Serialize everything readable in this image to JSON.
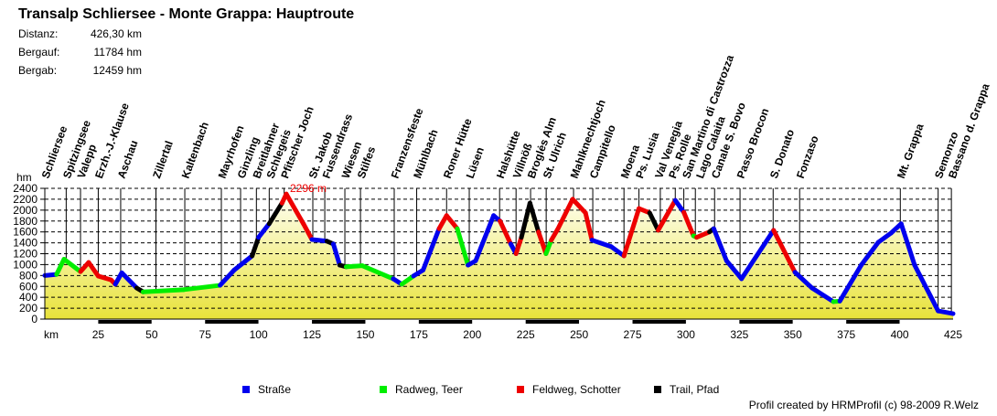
{
  "header": {
    "title": "Transalp Schliersee - Monte Grappa: Hauptroute",
    "stats": [
      {
        "label": "Distanz:",
        "value": "426,30 km"
      },
      {
        "label": "Bergauf:",
        "value": "11784 hm"
      },
      {
        "label": "Bergab:",
        "value": "12459 hm"
      }
    ]
  },
  "footer": {
    "credit": "Profil created by HRMProfil (c) 98-2009 R.Welz"
  },
  "chart_data": {
    "type": "area",
    "title": "Transalp Schliersee - Monte Grappa: Hauptroute",
    "xlabel": "km",
    "ylabel": "hm",
    "xlim": [
      0,
      425
    ],
    "ylim": [
      0,
      2400
    ],
    "xticks": [
      25,
      50,
      75,
      100,
      125,
      150,
      175,
      200,
      225,
      250,
      275,
      300,
      325,
      350,
      375,
      400,
      425
    ],
    "yticks": [
      0,
      200,
      400,
      600,
      800,
      1000,
      1200,
      1400,
      1600,
      1800,
      2000,
      2200,
      2400
    ],
    "grid": true,
    "max_label": "2296 m",
    "max_point": {
      "km": 113,
      "elevation": 2296
    },
    "legend_position": "bottom",
    "surface_types": [
      {
        "key": "road",
        "name": "Straße",
        "color": "#0000ee"
      },
      {
        "key": "cycle",
        "name": "Radweg, Teer",
        "color": "#00ee00"
      },
      {
        "key": "gravel",
        "name": "Feldweg, Schotter",
        "color": "#ee0000"
      },
      {
        "key": "trail",
        "name": "Trail, Pfad",
        "color": "#000000"
      }
    ],
    "fill_colors": {
      "top": "#fffff4",
      "bottom": "#e8e23a"
    },
    "profile": [
      [
        0,
        800,
        "road"
      ],
      [
        5.5,
        820,
        "road"
      ],
      [
        9,
        1100,
        "cycle"
      ],
      [
        16.7,
        870,
        "cycle"
      ],
      [
        20.5,
        1040,
        "gravel"
      ],
      [
        25,
        790,
        "gravel"
      ],
      [
        31,
        720,
        "gravel"
      ],
      [
        33,
        640,
        "gravel"
      ],
      [
        36,
        850,
        "road"
      ],
      [
        43,
        570,
        "road"
      ],
      [
        46,
        500,
        "trail"
      ],
      [
        65,
        540,
        "cycle"
      ],
      [
        82,
        620,
        "cycle"
      ],
      [
        88.6,
        900,
        "road"
      ],
      [
        97,
        1160,
        "road"
      ],
      [
        100,
        1500,
        "trail"
      ],
      [
        105,
        1750,
        "road"
      ],
      [
        111,
        2130,
        "trail"
      ],
      [
        113,
        2296,
        "gravel"
      ],
      [
        121,
        1750,
        "gravel"
      ],
      [
        125,
        1460,
        "gravel"
      ],
      [
        132,
        1430,
        "road"
      ],
      [
        135,
        1380,
        "trail"
      ],
      [
        138,
        990,
        "road"
      ],
      [
        141,
        960,
        "trail"
      ],
      [
        148.5,
        980,
        "cycle"
      ],
      [
        163,
        740,
        "cycle"
      ],
      [
        167,
        640,
        "road"
      ],
      [
        172.5,
        790,
        "cycle"
      ],
      [
        177,
        900,
        "road"
      ],
      [
        184.5,
        1660,
        "road"
      ],
      [
        188,
        1900,
        "gravel"
      ],
      [
        193,
        1660,
        "gravel"
      ],
      [
        198,
        990,
        "cycle"
      ],
      [
        201.6,
        1070,
        "road"
      ],
      [
        210,
        1900,
        "road"
      ],
      [
        213,
        1800,
        "road"
      ],
      [
        218,
        1380,
        "gravel"
      ],
      [
        220.5,
        1200,
        "road"
      ],
      [
        223,
        1500,
        "gravel"
      ],
      [
        227,
        2130,
        "trail"
      ],
      [
        231,
        1600,
        "trail"
      ],
      [
        234.5,
        1200,
        "gravel"
      ],
      [
        237,
        1450,
        "cycle"
      ],
      [
        240,
        1650,
        "gravel"
      ],
      [
        247,
        2200,
        "gravel"
      ],
      [
        253,
        1950,
        "gravel"
      ],
      [
        256,
        1450,
        "gravel"
      ],
      [
        265,
        1330,
        "road"
      ],
      [
        271,
        1160,
        "road"
      ],
      [
        278,
        2030,
        "gravel"
      ],
      [
        283,
        1950,
        "gravel"
      ],
      [
        287,
        1630,
        "trail"
      ],
      [
        295,
        2180,
        "gravel"
      ],
      [
        299,
        1960,
        "road"
      ],
      [
        303.5,
        1530,
        "gravel"
      ],
      [
        305,
        1500,
        "cycle"
      ],
      [
        311,
        1600,
        "gravel"
      ],
      [
        313,
        1660,
        "trail"
      ],
      [
        319,
        1070,
        "road"
      ],
      [
        326,
        740,
        "road"
      ],
      [
        341,
        1630,
        "road"
      ],
      [
        351,
        860,
        "gravel"
      ],
      [
        359,
        570,
        "road"
      ],
      [
        369,
        320,
        "road"
      ],
      [
        372,
        330,
        "cycle"
      ],
      [
        382,
        990,
        "road"
      ],
      [
        390,
        1410,
        "road"
      ],
      [
        396,
        1580,
        "road"
      ],
      [
        400.7,
        1750,
        "road"
      ],
      [
        407,
        990,
        "road"
      ],
      [
        418,
        150,
        "road"
      ],
      [
        425,
        100,
        "road"
      ]
    ],
    "stations": [
      {
        "name": "Schliersee",
        "km": 0
      },
      {
        "name": "Spitzingsee",
        "km": 10
      },
      {
        "name": "Valepp",
        "km": 16.7
      },
      {
        "name": "Erzh.-J.-Klause",
        "km": 25
      },
      {
        "name": "Aschau",
        "km": 35.5
      },
      {
        "name": "Zillertal",
        "km": 52
      },
      {
        "name": "Kaltenbach",
        "km": 65.5
      },
      {
        "name": "Mayrhofen",
        "km": 82.6
      },
      {
        "name": "Ginzling",
        "km": 91.6
      },
      {
        "name": "Breitlahner",
        "km": 99
      },
      {
        "name": "Schlegeis",
        "km": 105
      },
      {
        "name": "Pfitscher Joch",
        "km": 112
      },
      {
        "name": "St. Jakob",
        "km": 125.4
      },
      {
        "name": "Fussendrass",
        "km": 131
      },
      {
        "name": "Wiesen",
        "km": 140.4
      },
      {
        "name": "Stilfes",
        "km": 147.7
      },
      {
        "name": "Franzensfeste",
        "km": 163.5
      },
      {
        "name": "Mühlbach",
        "km": 174
      },
      {
        "name": "Roner Hütte",
        "km": 188
      },
      {
        "name": "Lüsen",
        "km": 198.6
      },
      {
        "name": "Halshütte",
        "km": 212.8
      },
      {
        "name": "Villnöß",
        "km": 220.5
      },
      {
        "name": "Broglės Alm",
        "km": 227.3
      },
      {
        "name": "St. Ulrich",
        "km": 234.6
      },
      {
        "name": "Mahlknechtjoch",
        "km": 247.4
      },
      {
        "name": "Campitello",
        "km": 256.4
      },
      {
        "name": "Moena",
        "km": 271
      },
      {
        "name": "Ps. Lusia",
        "km": 278
      },
      {
        "name": "Val Venegia",
        "km": 288
      },
      {
        "name": "Ps. Rolle",
        "km": 295
      },
      {
        "name": "San Martino di Castrozza",
        "km": 299
      },
      {
        "name": "Lago Calaita",
        "km": 304.4
      },
      {
        "name": "Canale S. Bovo",
        "km": 313.4
      },
      {
        "name": "Passo Brocon",
        "km": 325.3
      },
      {
        "name": "S. Donato",
        "km": 340.8
      },
      {
        "name": "Fonzaso",
        "km": 353.2
      },
      {
        "name": "Mt. Grappa",
        "km": 400.3
      },
      {
        "name": "Semonzo",
        "km": 418
      },
      {
        "name": "Bassano d. Grappa",
        "km": 424.2
      }
    ]
  }
}
